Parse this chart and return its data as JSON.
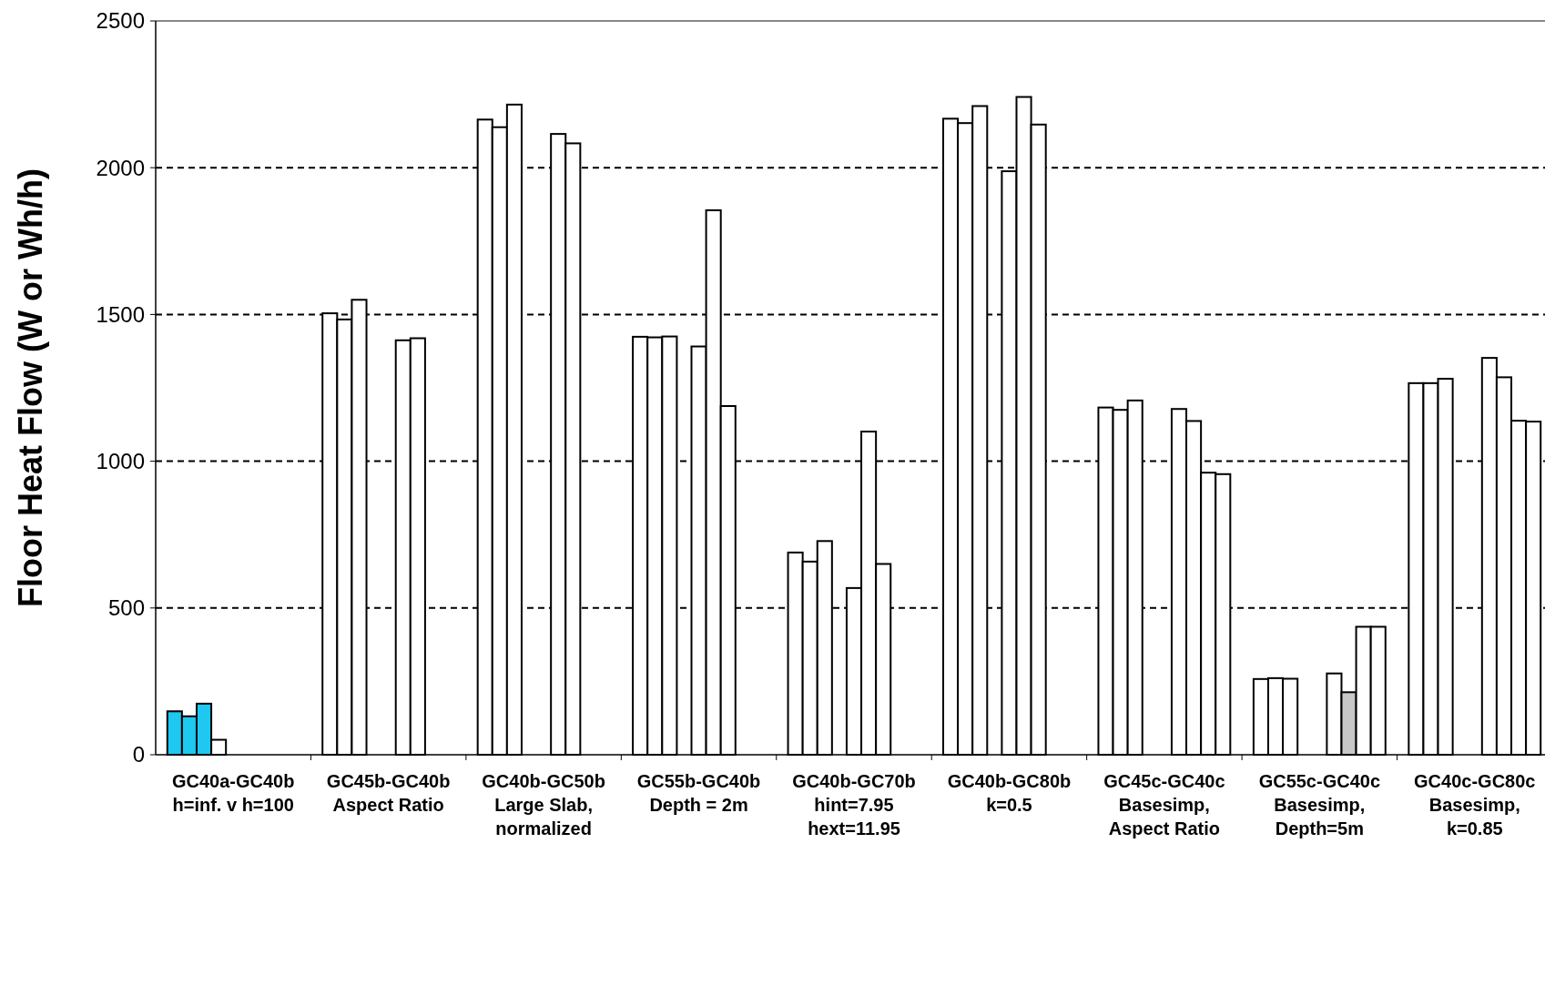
{
  "chart_data": {
    "type": "bar",
    "ylabel": "Floor Heat Flow (W or Wh/h)",
    "categories": [
      "GC40a-GC40b\nh=inf. v h=100",
      "GC45b-GC40b\nAspect Ratio",
      "GC40b-GC50b\nLarge Slab,\nnormalized",
      "GC55b-GC40b\nDepth = 2m",
      "GC40b-GC70b\nhint=7.95\nhext=11.95",
      "GC40b-GC80b\nk=0.5",
      "GC45c-GC40c\nBasesimp,\nAspect Ratio",
      "GC55c-GC40c\nBasesimp,\nDepth=5m",
      "GC40c-GC80c\nBasesimp,\nk=0.85"
    ],
    "series": [
      {
        "colors": [
          "#1ec8f0",
          "#ffffff",
          "#ffffff",
          "#ffffff",
          "#ffffff",
          "#ffffff",
          "#ffffff",
          "#ffffff",
          "#ffffff"
        ],
        "values": [
          148,
          1504,
          2164,
          1424,
          689,
          2167,
          1183,
          258,
          1266
        ]
      },
      {
        "colors": [
          "#1ec8f0",
          "#ffffff",
          "#ffffff",
          "#ffffff",
          "#ffffff",
          "#ffffff",
          "#ffffff",
          "#ffffff",
          "#ffffff"
        ],
        "values": [
          131,
          1483,
          2138,
          1422,
          658,
          2152,
          1175,
          261,
          1266
        ]
      },
      {
        "colors": [
          "#1ec8f0",
          "#ffffff",
          "#ffffff",
          "#ffffff",
          "#ffffff",
          "#ffffff",
          "#ffffff",
          "#ffffff",
          "#ffffff"
        ],
        "values": [
          174,
          1550,
          2215,
          1425,
          728,
          2210,
          1207,
          259,
          1281
        ]
      },
      {
        "color": "#ffffff",
        "values": [
          51,
          null,
          null,
          null,
          null,
          null,
          null,
          null,
          null
        ]
      },
      {
        "color": "#ffffff",
        "values": [
          null,
          null,
          null,
          1391,
          568,
          1988,
          null,
          null,
          null
        ]
      },
      {
        "color": "#ffffff",
        "values": [
          null,
          1412,
          2115,
          1855,
          1101,
          2241,
          1178,
          277,
          1352
        ]
      },
      {
        "colors": [
          null,
          "#ffffff",
          "#ffffff",
          "#ffffff",
          "#ffffff",
          "#ffffff",
          "#ffffff",
          "#c8c8c8",
          "#ffffff"
        ],
        "values": [
          null,
          1419,
          2083,
          1188,
          650,
          2147,
          1137,
          213,
          1286
        ]
      },
      {
        "color": "#ffffff",
        "values": [
          null,
          null,
          null,
          null,
          null,
          null,
          961,
          436,
          1138
        ]
      },
      {
        "color": "#ffffff",
        "values": [
          null,
          null,
          null,
          null,
          null,
          null,
          956,
          436,
          1135
        ]
      }
    ],
    "ylim": [
      0,
      2500
    ],
    "yticks": [
      0,
      500,
      1000,
      1500,
      2000,
      2500
    ],
    "grid": "y"
  }
}
